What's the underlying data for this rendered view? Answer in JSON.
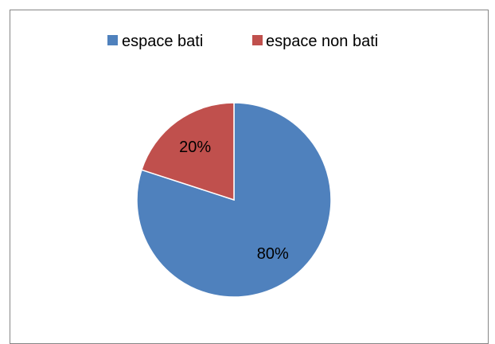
{
  "chart_data": {
    "type": "pie",
    "title": "",
    "legend_position": "top",
    "start_angle_deg": 0,
    "direction": "clockwise",
    "slices": [
      {
        "name": "espace bati",
        "value": 80,
        "label": "80%",
        "color": "#4F81BD"
      },
      {
        "name": "espace non bati",
        "value": 20,
        "label": "20%",
        "color": "#C0504D"
      }
    ]
  }
}
